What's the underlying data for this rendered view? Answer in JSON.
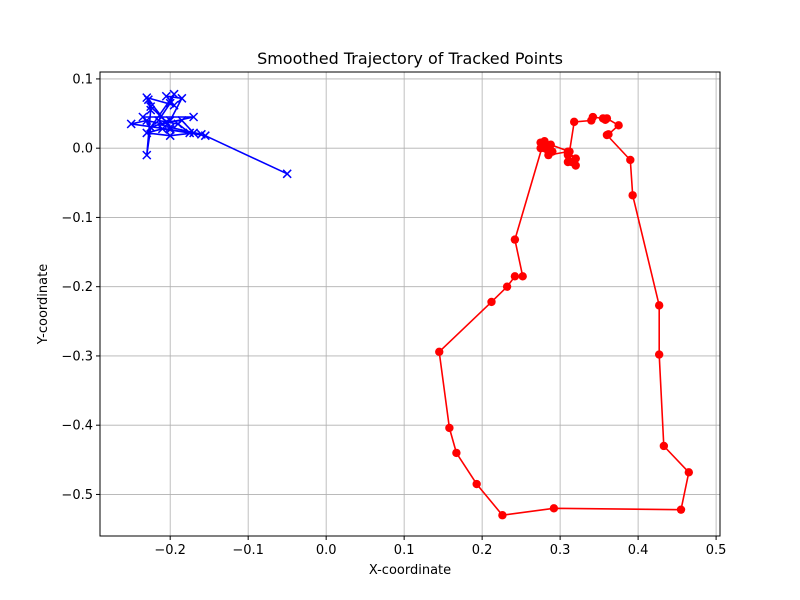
{
  "chart_data": {
    "type": "line",
    "title": "Smoothed Trajectory of Tracked Points",
    "xlabel": "X-coordinate",
    "ylabel": "Y-coordinate",
    "xlim": [
      -0.29,
      0.505
    ],
    "ylim": [
      -0.56,
      0.11
    ],
    "x_ticks": [
      -0.2,
      -0.1,
      0.0,
      0.1,
      0.2,
      0.3,
      0.4,
      0.5
    ],
    "x_tick_labels": [
      "−0.2",
      "−0.1",
      "0.0",
      "0.1",
      "0.2",
      "0.3",
      "0.4",
      "0.5"
    ],
    "y_ticks": [
      0.1,
      0.0,
      -0.1,
      -0.2,
      -0.3,
      -0.4,
      -0.5
    ],
    "y_tick_labels": [
      "0.1",
      "0.0",
      "−0.1",
      "−0.2",
      "−0.3",
      "−0.4",
      "−0.5"
    ],
    "grid": true,
    "series": [
      {
        "color": "#0000ff",
        "marker": "x",
        "points": [
          [
            -0.05,
            -0.037
          ],
          [
            -0.155,
            0.018
          ],
          [
            -0.2,
            0.027
          ],
          [
            -0.25,
            0.035
          ],
          [
            -0.23,
            0.04
          ],
          [
            -0.21,
            0.035
          ],
          [
            -0.17,
            0.045
          ],
          [
            -0.235,
            0.045
          ],
          [
            -0.225,
            0.03
          ],
          [
            -0.2,
            0.04
          ],
          [
            -0.185,
            0.072
          ],
          [
            -0.205,
            0.075
          ],
          [
            -0.195,
            0.062
          ],
          [
            -0.23,
            0.073
          ],
          [
            -0.225,
            0.055
          ],
          [
            -0.23,
            -0.01
          ],
          [
            -0.225,
            0.03
          ],
          [
            -0.195,
            0.078
          ],
          [
            -0.2,
            0.065
          ],
          [
            -0.215,
            0.04
          ],
          [
            -0.19,
            0.035
          ],
          [
            -0.175,
            0.022
          ],
          [
            -0.21,
            0.028
          ],
          [
            -0.23,
            0.022
          ],
          [
            -0.2,
            0.018
          ],
          [
            -0.17,
            0.022
          ],
          [
            -0.185,
            0.04
          ],
          [
            -0.205,
            0.038
          ],
          [
            -0.225,
            0.06
          ],
          [
            -0.228,
            0.07
          ],
          [
            -0.2,
            0.03
          ],
          [
            -0.16,
            0.02
          ]
        ]
      },
      {
        "color": "#ff0000",
        "marker": "o",
        "points": [
          [
            0.275,
            0.008
          ],
          [
            0.285,
            0.003
          ],
          [
            0.28,
            0.0
          ],
          [
            0.29,
            -0.005
          ],
          [
            0.275,
            0.0
          ],
          [
            0.285,
            -0.01
          ],
          [
            0.31,
            -0.005
          ],
          [
            0.32,
            -0.015
          ],
          [
            0.31,
            -0.008
          ],
          [
            0.315,
            -0.02
          ],
          [
            0.32,
            -0.025
          ],
          [
            0.31,
            -0.02
          ],
          [
            0.318,
            0.038
          ],
          [
            0.34,
            0.04
          ],
          [
            0.342,
            0.045
          ],
          [
            0.355,
            0.043
          ],
          [
            0.358,
            0.041
          ],
          [
            0.36,
            0.043
          ],
          [
            0.375,
            0.033
          ],
          [
            0.362,
            0.02
          ],
          [
            0.36,
            0.019
          ],
          [
            0.39,
            -0.017
          ],
          [
            0.393,
            -0.068
          ],
          [
            0.427,
            -0.227
          ],
          [
            0.427,
            -0.298
          ],
          [
            0.433,
            -0.43
          ],
          [
            0.465,
            -0.468
          ],
          [
            0.455,
            -0.522
          ],
          [
            0.292,
            -0.52
          ],
          [
            0.226,
            -0.53
          ],
          [
            0.193,
            -0.485
          ],
          [
            0.167,
            -0.44
          ],
          [
            0.158,
            -0.404
          ],
          [
            0.145,
            -0.294
          ],
          [
            0.212,
            -0.222
          ],
          [
            0.232,
            -0.2
          ],
          [
            0.242,
            -0.185
          ],
          [
            0.252,
            -0.185
          ],
          [
            0.242,
            -0.132
          ],
          [
            0.278,
            0.006
          ],
          [
            0.28,
            0.01
          ],
          [
            0.288,
            0.005
          ],
          [
            0.312,
            -0.005
          ],
          [
            0.31,
            -0.01
          ]
        ]
      }
    ]
  }
}
